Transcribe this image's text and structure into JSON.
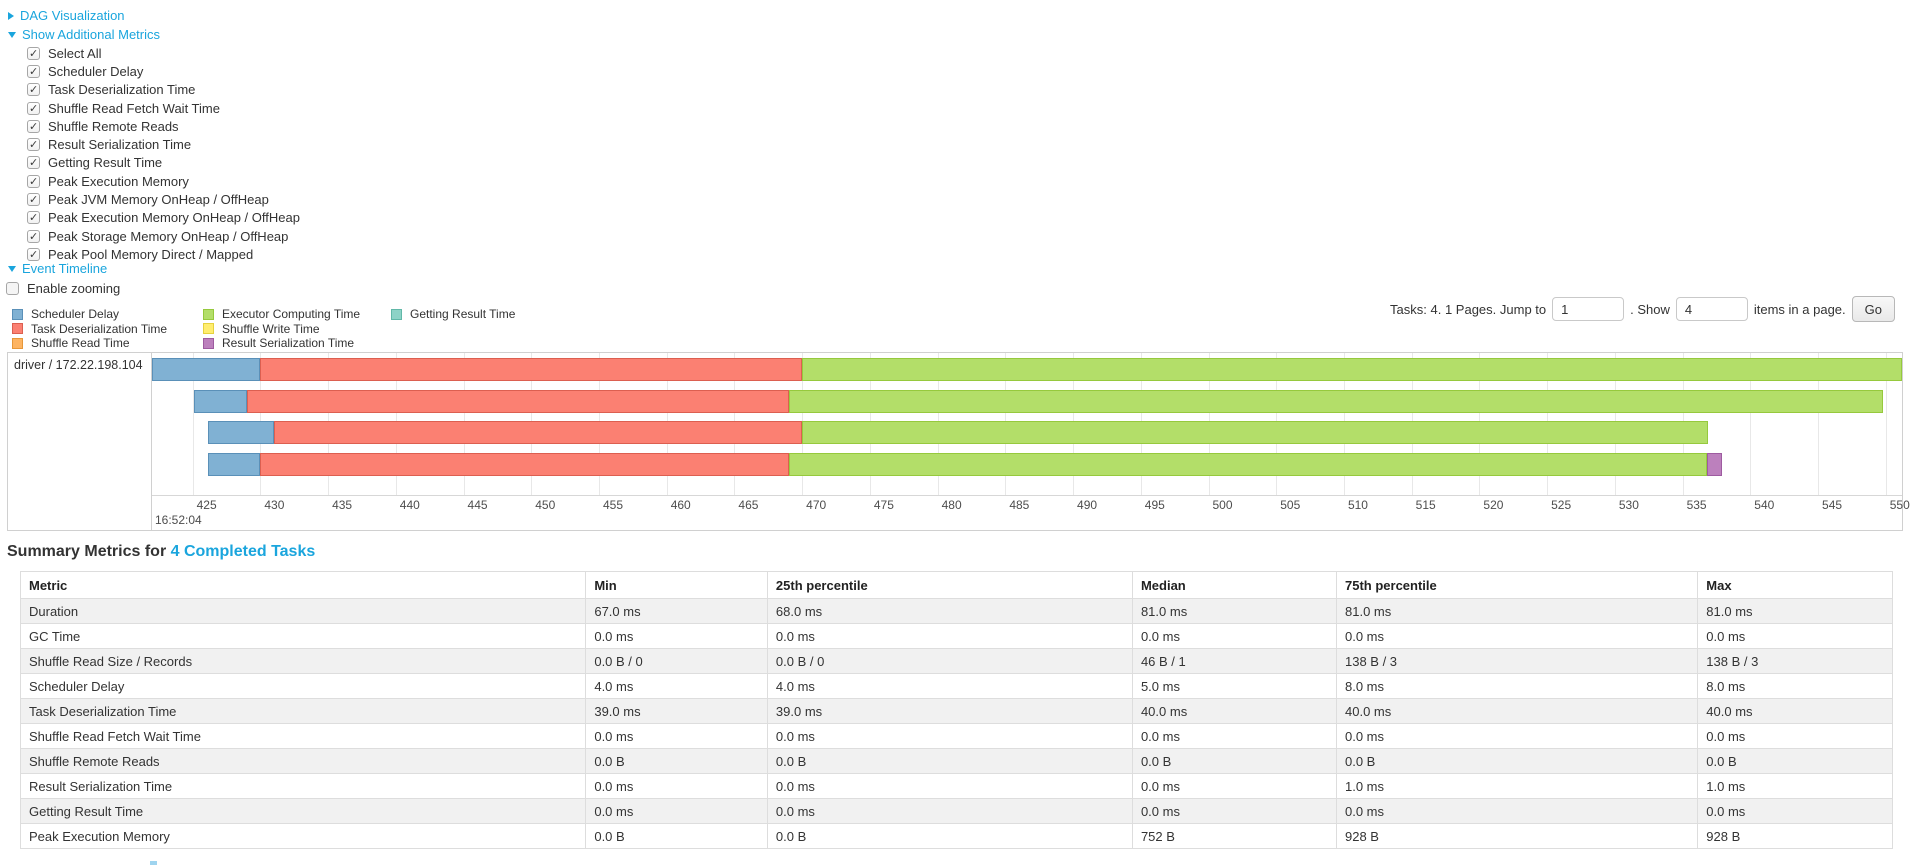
{
  "controls": {
    "dag": {
      "label": "DAG Visualization"
    },
    "metrics": {
      "label": "Show Additional Metrics",
      "items": [
        {
          "label": "Select All",
          "checked": true
        },
        {
          "label": "Scheduler Delay",
          "checked": true
        },
        {
          "label": "Task Deserialization Time",
          "checked": true
        },
        {
          "label": "Shuffle Read Fetch Wait Time",
          "checked": true
        },
        {
          "label": "Shuffle Remote Reads",
          "checked": true
        },
        {
          "label": "Result Serialization Time",
          "checked": true
        },
        {
          "label": "Getting Result Time",
          "checked": true
        },
        {
          "label": "Peak Execution Memory",
          "checked": true
        },
        {
          "label": "Peak JVM Memory OnHeap / OffHeap",
          "checked": true
        },
        {
          "label": "Peak Execution Memory OnHeap / OffHeap",
          "checked": true
        },
        {
          "label": "Peak Storage Memory OnHeap / OffHeap",
          "checked": true
        },
        {
          "label": "Peak Pool Memory Direct / Mapped",
          "checked": true
        }
      ]
    },
    "event_timeline": {
      "label": "Event Timeline"
    },
    "enable_zooming": {
      "label": "Enable zooming",
      "checked": false
    }
  },
  "pagination": {
    "summary": "Tasks: 4. 1 Pages. Jump to",
    "jump_value": "1",
    "mid": ". Show",
    "show_value": "4",
    "suffix": "items in a page.",
    "go_label": "Go"
  },
  "legend": {
    "columns": [
      [
        {
          "key": "scheduler_delay",
          "label": "Scheduler Delay"
        },
        {
          "key": "task_deserialization",
          "label": "Task Deserialization Time"
        },
        {
          "key": "shuffle_read",
          "label": "Shuffle Read Time"
        }
      ],
      [
        {
          "key": "executor_computing",
          "label": "Executor Computing Time"
        },
        {
          "key": "shuffle_write",
          "label": "Shuffle Write Time"
        },
        {
          "key": "result_serialization",
          "label": "Result Serialization Time"
        }
      ],
      [
        {
          "key": "getting_result",
          "label": "Getting Result Time"
        }
      ]
    ]
  },
  "chart_data": {
    "type": "timeline",
    "group": "driver / 172.22.198.104",
    "axis": {
      "start": 422,
      "end": 551.2,
      "tick_start": 425,
      "tick_end": 550,
      "tick_step": 5,
      "major_label": "16:52:04",
      "units": "ms within second 16:52:04"
    },
    "colors": {
      "scheduler_delay": {
        "fill": "#80B1D3",
        "border": "#5A90B8"
      },
      "task_deserialization": {
        "fill": "#FB8072",
        "border": "#DC5F50"
      },
      "shuffle_read": {
        "fill": "#FDB462",
        "border": "#E69739"
      },
      "executor_computing": {
        "fill": "#B3DE69",
        "border": "#96C93D"
      },
      "shuffle_write": {
        "fill": "#FFED6F",
        "border": "#E6D23E"
      },
      "result_serialization": {
        "fill": "#BC80BD",
        "border": "#9E5BA0"
      },
      "getting_result": {
        "fill": "#8DD3C7",
        "border": "#61B8A8"
      }
    },
    "tasks": [
      {
        "segments": [
          {
            "metric": "scheduler_delay",
            "start": 422,
            "end": 430
          },
          {
            "metric": "task_deserialization",
            "start": 430,
            "end": 470
          },
          {
            "metric": "executor_computing",
            "start": 470,
            "end": 551.2
          }
        ]
      },
      {
        "segments": [
          {
            "metric": "scheduler_delay",
            "start": 425.1,
            "end": 429
          },
          {
            "metric": "task_deserialization",
            "start": 429,
            "end": 469
          },
          {
            "metric": "executor_computing",
            "start": 469,
            "end": 549.8
          }
        ]
      },
      {
        "segments": [
          {
            "metric": "scheduler_delay",
            "start": 426.1,
            "end": 431
          },
          {
            "metric": "task_deserialization",
            "start": 431,
            "end": 470
          },
          {
            "metric": "executor_computing",
            "start": 470,
            "end": 536.9
          }
        ]
      },
      {
        "segments": [
          {
            "metric": "scheduler_delay",
            "start": 426.1,
            "end": 430
          },
          {
            "metric": "task_deserialization",
            "start": 430,
            "end": 469
          },
          {
            "metric": "executor_computing",
            "start": 469,
            "end": 536.8
          },
          {
            "metric": "result_serialization",
            "start": 536.8,
            "end": 537.9
          }
        ]
      }
    ]
  },
  "summary": {
    "title_prefix": "Summary Metrics for ",
    "title_link": "4 Completed Tasks"
  },
  "table": {
    "columns": [
      "Metric",
      "Min",
      "25th percentile",
      "Median",
      "75th percentile",
      "Max"
    ],
    "rows": [
      [
        "Duration",
        "67.0 ms",
        "68.0 ms",
        "81.0 ms",
        "81.0 ms",
        "81.0 ms"
      ],
      [
        "GC Time",
        "0.0 ms",
        "0.0 ms",
        "0.0 ms",
        "0.0 ms",
        "0.0 ms"
      ],
      [
        "Shuffle Read Size / Records",
        "0.0 B / 0",
        "0.0 B / 0",
        "46 B / 1",
        "138 B / 3",
        "138 B / 3"
      ],
      [
        "Scheduler Delay",
        "4.0 ms",
        "4.0 ms",
        "5.0 ms",
        "8.0 ms",
        "8.0 ms"
      ],
      [
        "Task Deserialization Time",
        "39.0 ms",
        "39.0 ms",
        "40.0 ms",
        "40.0 ms",
        "40.0 ms"
      ],
      [
        "Shuffle Read Fetch Wait Time",
        "0.0 ms",
        "0.0 ms",
        "0.0 ms",
        "0.0 ms",
        "0.0 ms"
      ],
      [
        "Shuffle Remote Reads",
        "0.0 B",
        "0.0 B",
        "0.0 B",
        "0.0 B",
        "0.0 B"
      ],
      [
        "Result Serialization Time",
        "0.0 ms",
        "0.0 ms",
        "0.0 ms",
        "1.0 ms",
        "1.0 ms"
      ],
      [
        "Getting Result Time",
        "0.0 ms",
        "0.0 ms",
        "0.0 ms",
        "0.0 ms",
        "0.0 ms"
      ],
      [
        "Peak Execution Memory",
        "0.0 B",
        "0.0 B",
        "752 B",
        "928 B",
        "928 B"
      ]
    ]
  }
}
